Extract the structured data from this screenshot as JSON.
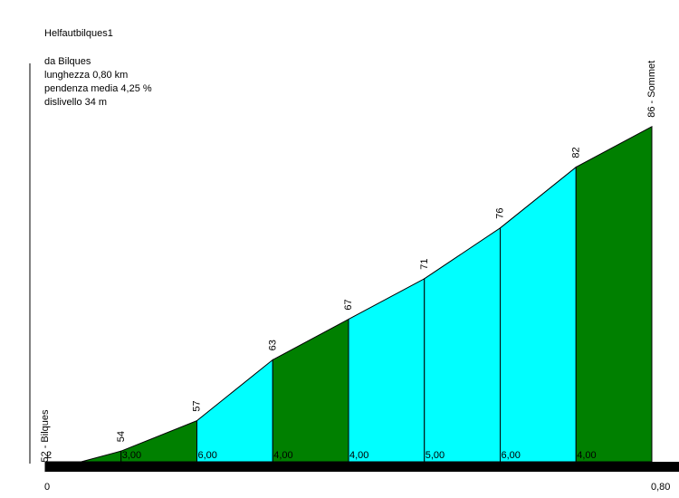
{
  "title": "Helfautbilques1",
  "info": {
    "start": "da Bilques",
    "length": "lunghezza 0,80 km",
    "avg_gradient": "pendenza media 4,25 %",
    "elevation_gain": "dislivello 34 m"
  },
  "colors": {
    "steep": "#00ffff",
    "moderate": "#008000",
    "outline": "#000000",
    "baseline": "#000000"
  },
  "chart_data": {
    "type": "area",
    "x_axis": {
      "min": 0,
      "max": 0.8,
      "start_label": "0",
      "end_label": "0,80"
    },
    "y_range": [
      45,
      90
    ],
    "points": [
      {
        "x": 0.0,
        "elevation": 52,
        "label": "52 - Bilques"
      },
      {
        "x": 0.1,
        "elevation": 54,
        "label": "54"
      },
      {
        "x": 0.2,
        "elevation": 57,
        "label": "57"
      },
      {
        "x": 0.3,
        "elevation": 63,
        "label": "63"
      },
      {
        "x": 0.4,
        "elevation": 67,
        "label": "67"
      },
      {
        "x": 0.5,
        "elevation": 71,
        "label": "71"
      },
      {
        "x": 0.6,
        "elevation": 76,
        "label": "76"
      },
      {
        "x": 0.7,
        "elevation": 82,
        "label": "82"
      },
      {
        "x": 0.8,
        "elevation": 86,
        "label": "86 - Sommet"
      }
    ],
    "segments": [
      {
        "gradient_label": "2",
        "color": "moderate"
      },
      {
        "gradient_label": "3,00",
        "color": "moderate"
      },
      {
        "gradient_label": "6,00",
        "color": "steep"
      },
      {
        "gradient_label": "4,00",
        "color": "moderate"
      },
      {
        "gradient_label": "4,00",
        "color": "steep"
      },
      {
        "gradient_label": "5,00",
        "color": "steep"
      },
      {
        "gradient_label": "6,00",
        "color": "steep"
      },
      {
        "gradient_label": "4,00",
        "color": "moderate"
      }
    ]
  }
}
